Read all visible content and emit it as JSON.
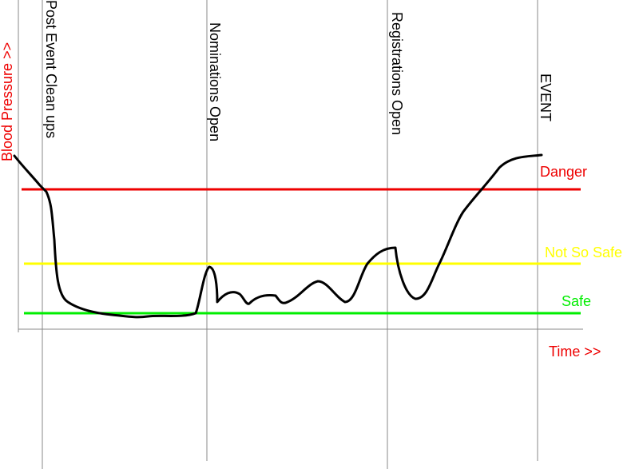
{
  "axes": {
    "y_label": "Blood Pressure >>",
    "x_label": "Time >>"
  },
  "phases": [
    "Post Event Clean ups",
    "Nominations Open",
    "Registrations Open",
    "EVENT"
  ],
  "levels": [
    "Danger",
    "Not So Safe",
    "Safe"
  ]
}
